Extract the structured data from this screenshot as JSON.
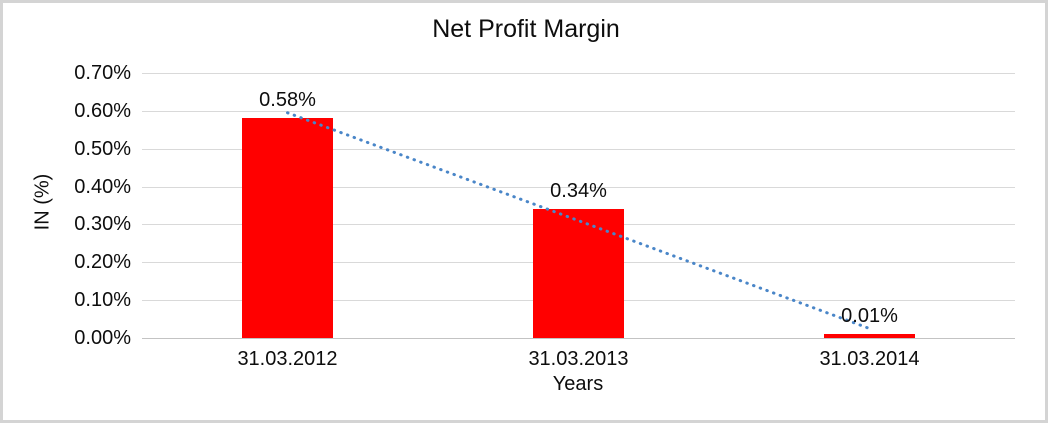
{
  "chart": {
    "frame_border_color": "#d4d4d4",
    "background_color": "#ffffff"
  },
  "chart_data": {
    "type": "bar",
    "title": "Net Profit Margin",
    "categories": [
      "31.03.2012",
      "31.03.2013",
      "31.03.2014"
    ],
    "values": [
      0.58,
      0.34,
      0.01
    ],
    "data_labels": [
      "0.58%",
      "0.34%",
      "0.01%"
    ],
    "xlabel": "Years",
    "ylabel": "IN (%)",
    "ylim": [
      0,
      0.7
    ],
    "yticks": [
      0,
      0.1,
      0.2,
      0.3,
      0.4,
      0.5,
      0.6,
      0.7
    ],
    "ytick_labels": [
      "0.00%",
      "0.10%",
      "0.20%",
      "0.30%",
      "0.40%",
      "0.50%",
      "0.60%",
      "0.70%"
    ],
    "grid": true,
    "legend": false,
    "bar_color": "#ff0000",
    "gridline_color": "#d9d9d9",
    "text_color": "#0d0d0d",
    "trendline": {
      "type": "linear",
      "style": "dotted",
      "color": "#4a86c8",
      "endpoint_values": [
        0.595,
        0.025
      ]
    }
  }
}
